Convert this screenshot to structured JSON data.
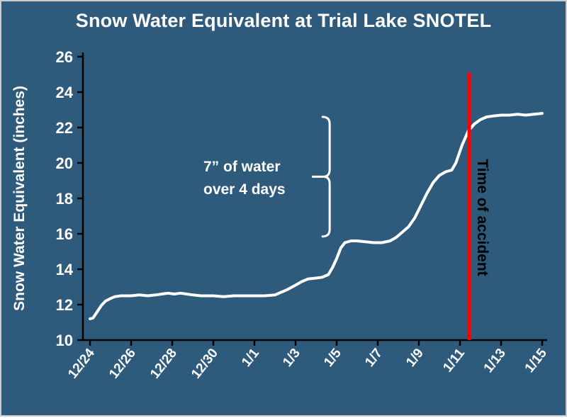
{
  "chart_data": {
    "type": "line",
    "title": "Snow Water Equivalent at Trial Lake SNOTEL",
    "xlabel": "",
    "ylabel": "Snow Water Equivalent (inches)",
    "ylim": [
      10,
      26
    ],
    "ytick_step": 2,
    "xlim_days": [
      0,
      22
    ],
    "x_tick_days": [
      0,
      2,
      4,
      6,
      8,
      10,
      12,
      14,
      16,
      18,
      20,
      22
    ],
    "x_tick_labels": [
      "12/24",
      "12/26",
      "12/28",
      "12/30",
      "1/1",
      "1/3",
      "1/5",
      "1/7",
      "1/9",
      "1/11",
      "1/13",
      "1/15"
    ],
    "grid": false,
    "legend": "none",
    "series": [
      {
        "name": "Snow Water Equivalent",
        "color": "#ffffff",
        "points": [
          [
            0.0,
            11.2
          ],
          [
            0.15,
            11.25
          ],
          [
            0.35,
            11.6
          ],
          [
            0.55,
            11.95
          ],
          [
            0.75,
            12.2
          ],
          [
            1.0,
            12.35
          ],
          [
            1.2,
            12.45
          ],
          [
            1.5,
            12.5
          ],
          [
            2.0,
            12.5
          ],
          [
            2.4,
            12.55
          ],
          [
            2.8,
            12.5
          ],
          [
            3.2,
            12.55
          ],
          [
            3.5,
            12.6
          ],
          [
            3.8,
            12.65
          ],
          [
            4.1,
            12.6
          ],
          [
            4.4,
            12.65
          ],
          [
            4.7,
            12.6
          ],
          [
            5.0,
            12.55
          ],
          [
            5.4,
            12.5
          ],
          [
            6.0,
            12.5
          ],
          [
            6.5,
            12.45
          ],
          [
            7.0,
            12.5
          ],
          [
            7.5,
            12.5
          ],
          [
            8.0,
            12.5
          ],
          [
            8.5,
            12.5
          ],
          [
            9.0,
            12.55
          ],
          [
            9.3,
            12.7
          ],
          [
            9.6,
            12.85
          ],
          [
            10.0,
            13.1
          ],
          [
            10.3,
            13.3
          ],
          [
            10.6,
            13.45
          ],
          [
            11.0,
            13.5
          ],
          [
            11.3,
            13.55
          ],
          [
            11.6,
            13.7
          ],
          [
            11.8,
            14.1
          ],
          [
            12.0,
            14.6
          ],
          [
            12.2,
            15.2
          ],
          [
            12.4,
            15.5
          ],
          [
            12.7,
            15.6
          ],
          [
            13.0,
            15.6
          ],
          [
            13.4,
            15.55
          ],
          [
            13.8,
            15.5
          ],
          [
            14.2,
            15.5
          ],
          [
            14.6,
            15.6
          ],
          [
            14.9,
            15.8
          ],
          [
            15.2,
            16.1
          ],
          [
            15.5,
            16.4
          ],
          [
            15.8,
            16.9
          ],
          [
            16.1,
            17.6
          ],
          [
            16.4,
            18.3
          ],
          [
            16.7,
            18.9
          ],
          [
            17.0,
            19.3
          ],
          [
            17.3,
            19.5
          ],
          [
            17.6,
            19.6
          ],
          [
            17.8,
            20.0
          ],
          [
            18.1,
            21.0
          ],
          [
            18.4,
            21.8
          ],
          [
            18.7,
            22.2
          ],
          [
            19.0,
            22.45
          ],
          [
            19.3,
            22.6
          ],
          [
            19.6,
            22.65
          ],
          [
            20.0,
            22.7
          ],
          [
            20.4,
            22.7
          ],
          [
            20.8,
            22.75
          ],
          [
            21.2,
            22.7
          ],
          [
            21.6,
            22.75
          ],
          [
            22.0,
            22.8
          ]
        ]
      }
    ],
    "annotations": {
      "water_note": {
        "line1": "7” of water",
        "line2": "over 4 days"
      },
      "brace": {
        "x_day": 11.66,
        "from_value": 15.85,
        "to_value": 22.6
      },
      "accident_line": {
        "x_day": 18.45,
        "label": "Time of accident",
        "top_value": 25.1,
        "bottom_value": 10
      }
    },
    "colors": {
      "background": "#2e5a7c",
      "axis": "#000000",
      "series_line": "#ffffff",
      "tick_text": "#ffffff",
      "accident_line": "#ff0000",
      "accident_label_text": "#000000",
      "annotation_text": "#ffffff"
    }
  }
}
